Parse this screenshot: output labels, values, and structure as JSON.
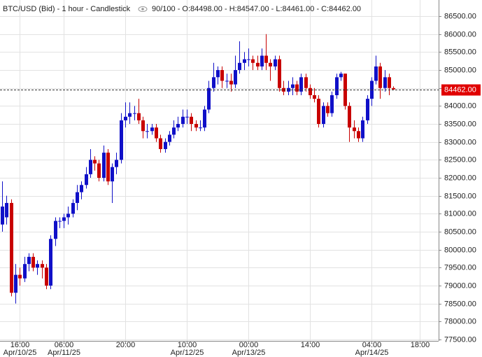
{
  "chart_data": {
    "type": "candlestick",
    "title": "BTC/USD (Bid) - 1 hour - Candlestick",
    "ohlc_text": "90/100 - O:84498.00 - H:84547.00 - L:84461.00 - C:84462.00",
    "up_color": "#1010c8",
    "down_color": "#c80000",
    "grid": true,
    "candles": [
      [
        80700,
        81900,
        80500,
        81200
      ],
      [
        80900,
        81500,
        80700,
        81300
      ],
      [
        81300,
        81400,
        78700,
        78800
      ],
      [
        78800,
        79600,
        78500,
        79300
      ],
      [
        79300,
        79500,
        79000,
        79200
      ],
      [
        79200,
        79800,
        79100,
        79600
      ],
      [
        79600,
        79900,
        79400,
        79800
      ],
      [
        79800,
        79900,
        79400,
        79500
      ],
      [
        79500,
        79700,
        79300,
        79600
      ],
      [
        79600,
        79700,
        79200,
        79500
      ],
      [
        79500,
        79600,
        78900,
        79000
      ],
      [
        79000,
        80400,
        78900,
        80300
      ],
      [
        80300,
        80900,
        80100,
        80800
      ],
      [
        80800,
        80900,
        80600,
        80800
      ],
      [
        80800,
        81000,
        80600,
        80900
      ],
      [
        80900,
        81200,
        80700,
        81000
      ],
      [
        81000,
        81400,
        80900,
        81300
      ],
      [
        81300,
        81800,
        81100,
        81600
      ],
      [
        81600,
        81900,
        81400,
        81800
      ],
      [
        81800,
        82300,
        81700,
        82100
      ],
      [
        82100,
        82800,
        82000,
        82500
      ],
      [
        82500,
        82600,
        82200,
        82400
      ],
      [
        82400,
        82500,
        81900,
        82000
      ],
      [
        82000,
        82900,
        81900,
        82700
      ],
      [
        82700,
        82800,
        81800,
        81900
      ],
      [
        81900,
        82400,
        81300,
        82300
      ],
      [
        82300,
        82700,
        82100,
        82500
      ],
      [
        82500,
        83800,
        82400,
        83600
      ],
      [
        83600,
        84100,
        83400,
        83700
      ],
      [
        83700,
        84100,
        83500,
        83800
      ],
      [
        83800,
        84000,
        83600,
        83800
      ],
      [
        83800,
        84200,
        83500,
        83600
      ],
      [
        83600,
        83700,
        83100,
        83300
      ],
      [
        83300,
        83500,
        83100,
        83300
      ],
      [
        83300,
        83500,
        83200,
        83400
      ],
      [
        83400,
        83500,
        83000,
        83100
      ],
      [
        83100,
        83200,
        82700,
        82800
      ],
      [
        82800,
        83100,
        82700,
        83000
      ],
      [
        83000,
        83300,
        82900,
        83200
      ],
      [
        83200,
        83600,
        83100,
        83400
      ],
      [
        83400,
        83700,
        83300,
        83500
      ],
      [
        83500,
        83900,
        83400,
        83700
      ],
      [
        83700,
        83900,
        83500,
        83700
      ],
      [
        83700,
        83800,
        83300,
        83500
      ],
      [
        83500,
        83600,
        83300,
        83400
      ],
      [
        83400,
        83600,
        83300,
        83400
      ],
      [
        83400,
        84000,
        83300,
        83900
      ],
      [
        83900,
        84700,
        83800,
        84500
      ],
      [
        84500,
        85200,
        84400,
        84800
      ],
      [
        84800,
        85100,
        84600,
        85000
      ],
      [
        85000,
        85100,
        84500,
        84700
      ],
      [
        84700,
        84900,
        84500,
        84700
      ],
      [
        84700,
        84900,
        84400,
        84600
      ],
      [
        84600,
        85400,
        84500,
        85000
      ],
      [
        85000,
        85800,
        84900,
        85200
      ],
      [
        85200,
        85500,
        85000,
        85300
      ],
      [
        85300,
        85600,
        85100,
        85300
      ],
      [
        85300,
        85400,
        85000,
        85200
      ],
      [
        85200,
        85400,
        85000,
        85100
      ],
      [
        85100,
        85600,
        85000,
        85400
      ],
      [
        85400,
        86000,
        85000,
        85200
      ],
      [
        85200,
        85300,
        84700,
        85100
      ],
      [
        85100,
        85400,
        85000,
        85300
      ],
      [
        85300,
        85400,
        84400,
        84500
      ],
      [
        84500,
        84700,
        84300,
        84400
      ],
      [
        84400,
        84700,
        84300,
        84500
      ],
      [
        84500,
        84800,
        84300,
        84600
      ],
      [
        84600,
        84700,
        84300,
        84400
      ],
      [
        84400,
        84900,
        84300,
        84800
      ],
      [
        84800,
        84900,
        84400,
        84500
      ],
      [
        84500,
        84600,
        84200,
        84300
      ],
      [
        84300,
        84500,
        84100,
        84200
      ],
      [
        84200,
        84300,
        83400,
        83500
      ],
      [
        83500,
        84100,
        83400,
        84000
      ],
      [
        84000,
        84100,
        83700,
        83800
      ],
      [
        83800,
        84400,
        83700,
        84300
      ],
      [
        84300,
        84900,
        84200,
        84800
      ],
      [
        84800,
        84950,
        84700,
        84900
      ],
      [
        84900,
        84900,
        83900,
        84000
      ],
      [
        84000,
        84100,
        83000,
        83400
      ],
      [
        83400,
        83600,
        83100,
        83300
      ],
      [
        83300,
        83400,
        83000,
        83100
      ],
      [
        83100,
        83700,
        83000,
        83600
      ],
      [
        83600,
        84300,
        83500,
        84200
      ],
      [
        84200,
        84800,
        84000,
        84700
      ],
      [
        84700,
        85400,
        84600,
        85100
      ],
      [
        85100,
        85200,
        84200,
        84500
      ],
      [
        84500,
        85000,
        84400,
        84800
      ],
      [
        84800,
        84900,
        84300,
        84500
      ],
      [
        84498,
        84547,
        84461,
        84462
      ]
    ],
    "last_price": {
      "value": 84462,
      "label": "84462.00"
    },
    "xlim": [
      -0.5,
      99.3
    ],
    "xticks": [
      {
        "value": 4,
        "label": "16:00",
        "sublabel": "Apr/10/25"
      },
      {
        "value": 14,
        "label": "06:00",
        "sublabel": "Apr/11/25"
      },
      {
        "value": 28,
        "label": "20:00"
      },
      {
        "value": 42,
        "label": "10:00",
        "sublabel": "Apr/12/25"
      },
      {
        "value": 56,
        "label": "00:00",
        "sublabel": "Apr/13/25"
      },
      {
        "value": 70,
        "label": "14:00"
      },
      {
        "value": 84,
        "label": "04:00",
        "sublabel": "Apr/14/25"
      },
      {
        "value": 95,
        "label": "18:00"
      }
    ],
    "ylim": [
      77460,
      86950
    ],
    "yticks": [
      {
        "value": 77500,
        "label": "77500.00"
      },
      {
        "value": 78000,
        "label": "78000.00"
      },
      {
        "value": 78500,
        "label": "78500.00"
      },
      {
        "value": 79000,
        "label": "79000.00"
      },
      {
        "value": 79500,
        "label": "79500.00"
      },
      {
        "value": 80000,
        "label": "80000.00"
      },
      {
        "value": 80500,
        "label": "80500.00"
      },
      {
        "value": 81000,
        "label": "81000.00"
      },
      {
        "value": 81500,
        "label": "81500.00"
      },
      {
        "value": 82000,
        "label": "82000.00"
      },
      {
        "value": 82500,
        "label": "82500.00"
      },
      {
        "value": 83000,
        "label": "83000.00"
      },
      {
        "value": 83500,
        "label": "83500.00"
      },
      {
        "value": 84000,
        "label": "84000.00"
      },
      {
        "value": 84500,
        "label": "84500.00"
      },
      {
        "value": 85000,
        "label": "85000.00"
      },
      {
        "value": 85500,
        "label": "85500.00"
      },
      {
        "value": 86000,
        "label": "86000.00"
      },
      {
        "value": 86500,
        "label": "86500.00"
      }
    ]
  }
}
